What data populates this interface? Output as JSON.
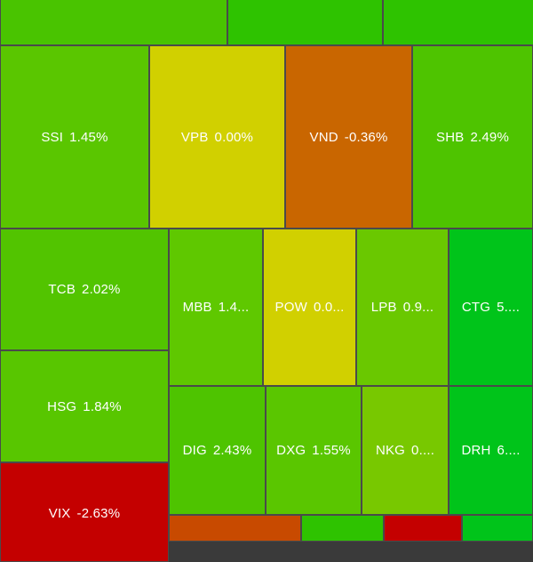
{
  "colors": {
    "strong_green": "#00c41a",
    "green": "#2ec300",
    "light_green": "#5fc800",
    "yellow_green": "#78c800",
    "yellow": "#d1d000",
    "orange": "#c96600",
    "orange_red": "#c84a00",
    "red": "#c40000"
  },
  "top_row": [
    {
      "symbol": "",
      "change": ""
    },
    {
      "symbol": "",
      "change": ""
    },
    {
      "symbol": "",
      "change": ""
    }
  ],
  "tiles": [
    {
      "symbol": "SSI",
      "change": "1.45%"
    },
    {
      "symbol": "VPB",
      "change": "0.00%"
    },
    {
      "symbol": "VND",
      "change": "-0.36%"
    },
    {
      "symbol": "SHB",
      "change": "2.49%"
    },
    {
      "symbol": "TCB",
      "change": "2.02%"
    },
    {
      "symbol": "MBB",
      "change": "1.4..."
    },
    {
      "symbol": "POW",
      "change": "0.0..."
    },
    {
      "symbol": "LPB",
      "change": "0.9..."
    },
    {
      "symbol": "CTG",
      "change": "5...."
    },
    {
      "symbol": "HSG",
      "change": "1.84%"
    },
    {
      "symbol": "DIG",
      "change": "2.43%"
    },
    {
      "symbol": "DXG",
      "change": "1.55%"
    },
    {
      "symbol": "NKG",
      "change": "0...."
    },
    {
      "symbol": "DRH",
      "change": "6...."
    },
    {
      "symbol": "VIX",
      "change": "-2.63%"
    }
  ]
}
